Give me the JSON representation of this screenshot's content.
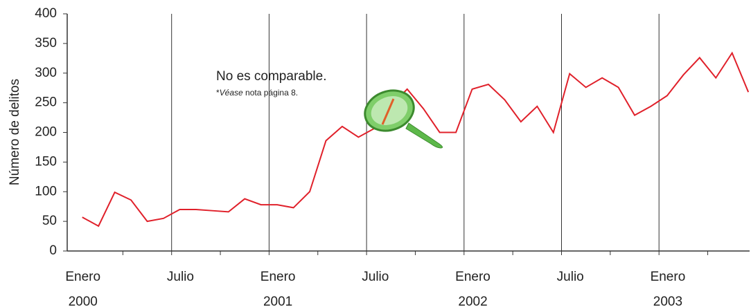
{
  "chart_data": {
    "type": "line",
    "y_label": "Número de delitos",
    "annotation": {
      "title": "No es comparable.",
      "note_prefix": "*",
      "note_italic": "Véase",
      "note_rest": " nota página 8."
    },
    "categories": [
      "Enero\n2000",
      null,
      null,
      null,
      null,
      null,
      "Julio",
      null,
      null,
      null,
      null,
      null,
      "Enero\n2001",
      null,
      null,
      null,
      null,
      null,
      "Julio",
      null,
      null,
      null,
      null,
      null,
      "Enero\n2002",
      null,
      null,
      null,
      null,
      null,
      "Julio",
      null,
      null,
      null,
      null,
      null,
      "Enero\n2003",
      null,
      null,
      null,
      null,
      null
    ],
    "series": [
      {
        "name": "Delitos",
        "color": "#e0202a",
        "values": [
          57,
          42,
          99,
          86,
          50,
          55,
          70,
          70,
          68,
          66,
          88,
          78,
          78,
          73,
          100,
          186,
          210,
          192,
          207,
          245,
          273,
          240,
          200,
          200,
          273,
          281,
          255,
          218,
          244,
          200,
          299,
          276,
          292,
          276,
          229,
          244,
          262,
          297,
          326,
          292,
          334,
          268
        ]
      }
    ],
    "ylim": [
      0,
      400
    ],
    "yticks": [
      0,
      50,
      100,
      150,
      200,
      250,
      300,
      350,
      400
    ],
    "grid": true
  }
}
